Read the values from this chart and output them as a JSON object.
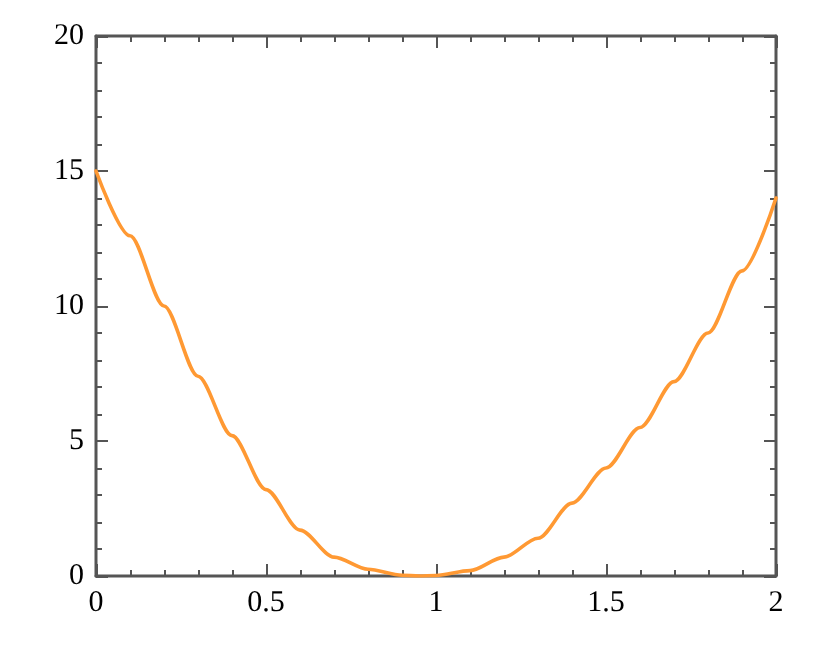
{
  "chart_data": {
    "type": "line",
    "x": [
      0,
      0.1,
      0.2,
      0.3,
      0.4,
      0.5,
      0.6,
      0.7,
      0.8,
      0.9,
      0.95,
      1,
      1.1,
      1.2,
      1.3,
      1.4,
      1.5,
      1.6,
      1.7,
      1.8,
      1.9,
      2
    ],
    "series": [
      {
        "color": "#ff9933",
        "values": [
          15,
          12.6,
          10,
          7.4,
          5.2,
          3.2,
          1.7,
          0.7,
          0.25,
          0.03,
          0,
          0.02,
          0.2,
          0.7,
          1.4,
          2.7,
          4,
          5.5,
          7.2,
          9,
          11.3,
          14
        ]
      }
    ],
    "xlim": [
      0,
      2
    ],
    "ylim": [
      0,
      20
    ],
    "xticks": [
      0,
      0.5,
      1,
      1.5,
      2
    ],
    "yticks": [
      0,
      5,
      10,
      15,
      20
    ],
    "marker": "none",
    "line_style": "solid"
  }
}
